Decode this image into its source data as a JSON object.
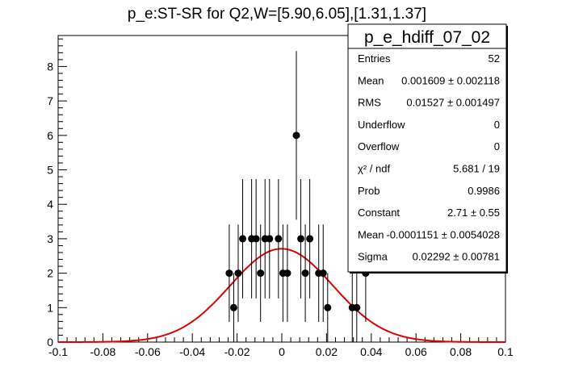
{
  "chart_data": {
    "type": "scatter",
    "title": "p_e:ST-SR for Q2,W=[5.90,6.05],[1.31,1.37]",
    "xlim": [
      -0.1,
      0.1
    ],
    "ylim": [
      0,
      8.9
    ],
    "x_ticks": [
      "-0.1",
      "-0.08",
      "-0.06",
      "-0.04",
      "-0.02",
      "0",
      "0.02",
      "0.04",
      "0.06",
      "0.08",
      "0.1"
    ],
    "y_ticks": [
      "0",
      "1",
      "2",
      "3",
      "4",
      "5",
      "6",
      "7",
      "8"
    ],
    "points": [
      {
        "x": -0.0235,
        "y": 2
      },
      {
        "x": -0.0215,
        "y": 1
      },
      {
        "x": -0.0195,
        "y": 2
      },
      {
        "x": -0.0175,
        "y": 3
      },
      {
        "x": -0.0135,
        "y": 3
      },
      {
        "x": -0.0115,
        "y": 3
      },
      {
        "x": -0.0095,
        "y": 2
      },
      {
        "x": -0.0075,
        "y": 3
      },
      {
        "x": -0.0055,
        "y": 3
      },
      {
        "x": -0.0015,
        "y": 3
      },
      {
        "x": 0.0005,
        "y": 2
      },
      {
        "x": 0.0025,
        "y": 2
      },
      {
        "x": 0.0065,
        "y": 6
      },
      {
        "x": 0.0085,
        "y": 3
      },
      {
        "x": 0.0105,
        "y": 2
      },
      {
        "x": 0.0125,
        "y": 3
      },
      {
        "x": 0.0165,
        "y": 2
      },
      {
        "x": 0.0185,
        "y": 2
      },
      {
        "x": 0.0205,
        "y": 1
      },
      {
        "x": 0.0315,
        "y": 1
      },
      {
        "x": 0.0335,
        "y": 1
      },
      {
        "x": 0.0375,
        "y": 2
      }
    ],
    "fit": {
      "type": "gaussian",
      "constant": 2.71,
      "mean": -0.0001151,
      "sigma": 0.02292,
      "color": "#e00000"
    },
    "marker_color": "#000000"
  },
  "stats": {
    "name": "p_e_hdiff_07_02",
    "rows": [
      {
        "label": "Entries",
        "value": "52"
      },
      {
        "label": "Mean",
        "value": "0.001609 ± 0.002118"
      },
      {
        "label": "RMS",
        "value": "0.01527 ± 0.001497"
      },
      {
        "label": "Underflow",
        "value": "0"
      },
      {
        "label": "Overflow",
        "value": "0"
      },
      {
        "label": "χ² / ndf",
        "value": "5.681 / 19"
      },
      {
        "label": "Prob",
        "value": "0.9986"
      },
      {
        "label": "Constant",
        "value": "2.71 ± 0.55"
      },
      {
        "label": "Mean",
        "value": "-0.0001151 ± 0.0054028"
      },
      {
        "label": "Sigma",
        "value": "0.02292 ± 0.00781"
      }
    ]
  }
}
